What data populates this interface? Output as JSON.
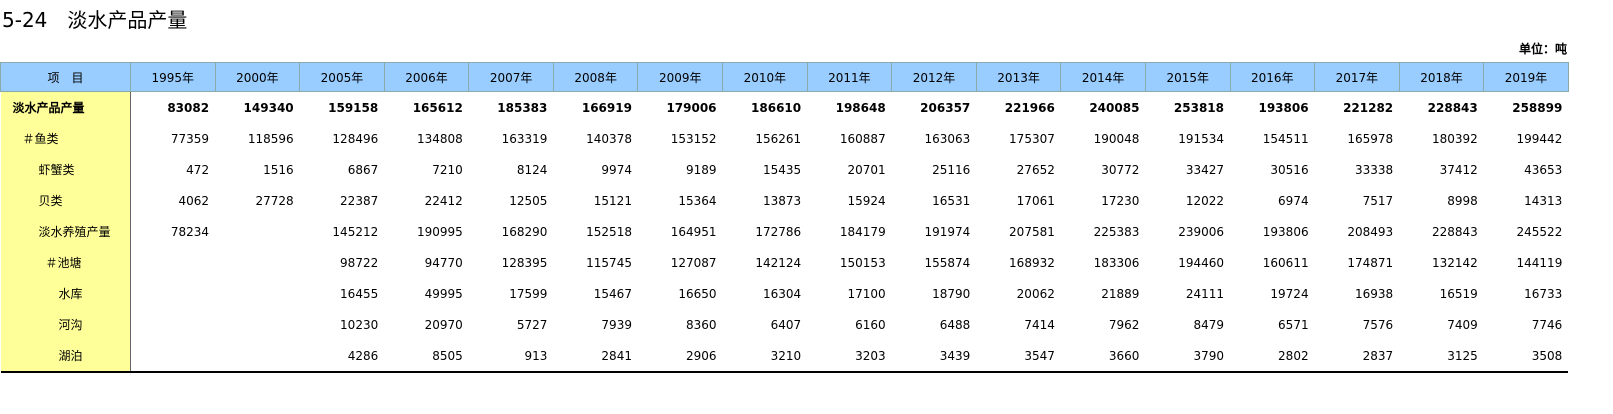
{
  "header": {
    "title": "5-24　淡水产品产量",
    "unit": "单位：吨"
  },
  "table": {
    "columns": [
      "项　目",
      "1995年",
      "2000年",
      "2005年",
      "2006年",
      "2007年",
      "2008年",
      "2009年",
      "2010年",
      "2011年",
      "2012年",
      "2013年",
      "2014年",
      "2015年",
      "2016年",
      "2017年",
      "2018年",
      "2019年"
    ],
    "rows": [
      [
        "淡水产品产量",
        83082,
        149340,
        159158,
        165612,
        185383,
        166919,
        179006,
        186610,
        198648,
        206357,
        221966,
        240085,
        253818,
        193806,
        221282,
        228843,
        258899
      ],
      [
        "＃鱼类",
        77359,
        118596,
        128496,
        134808,
        163319,
        140378,
        153152,
        156261,
        160887,
        163063,
        175307,
        190048,
        191534,
        154511,
        165978,
        180392,
        199442
      ],
      [
        "虾蟹类",
        472,
        1516,
        6867,
        7210,
        8124,
        9974,
        9189,
        15435,
        20701,
        25116,
        27652,
        30772,
        33427,
        30516,
        33338,
        37412,
        43653
      ],
      [
        "贝类",
        4062,
        27728,
        22387,
        22412,
        12505,
        15121,
        15364,
        13873,
        15924,
        16531,
        17061,
        17230,
        12022,
        6974,
        7517,
        8998,
        14313
      ],
      [
        "淡水养殖产量",
        78234,
        null,
        145212,
        190995,
        168290,
        152518,
        164951,
        172786,
        184179,
        191974,
        207581,
        225383,
        239006,
        193806,
        208493,
        228843,
        245522
      ],
      [
        "＃池塘",
        null,
        null,
        98722,
        94770,
        128395,
        115745,
        127087,
        142124,
        150153,
        155874,
        168932,
        183306,
        194460,
        160611,
        174871,
        132142,
        144119
      ],
      [
        "水库",
        null,
        null,
        16455,
        49995,
        17599,
        15467,
        16650,
        16304,
        17100,
        18790,
        20062,
        21889,
        24111,
        19724,
        16938,
        16519,
        16733
      ],
      [
        "河沟",
        null,
        null,
        10230,
        20970,
        5727,
        7939,
        8360,
        6407,
        6160,
        6488,
        7414,
        7962,
        8479,
        6571,
        7576,
        7409,
        7746
      ],
      [
        "湖泊",
        null,
        null,
        4286,
        8505,
        913,
        2841,
        2906,
        3210,
        3203,
        3439,
        3547,
        3660,
        3790,
        2802,
        2837,
        3125,
        3508
      ]
    ]
  }
}
